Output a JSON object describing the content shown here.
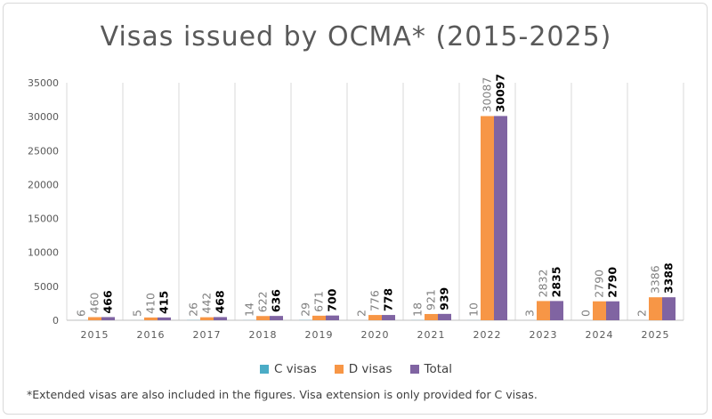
{
  "chart_data": {
    "type": "bar",
    "title": "Visas issued by OCMA* (2015-2025)",
    "categories": [
      "2015",
      "2016",
      "2017",
      "2018",
      "2019",
      "2020",
      "2021",
      "2022",
      "2023",
      "2024",
      "2025"
    ],
    "series": [
      {
        "name": "C visas",
        "color": "#4bacc6",
        "values": [
          6,
          5,
          26,
          14,
          29,
          2,
          18,
          10,
          3,
          0,
          2
        ]
      },
      {
        "name": "D visas",
        "color": "#f79646",
        "values": [
          460,
          410,
          442,
          622,
          671,
          776,
          921,
          30087,
          2832,
          2790,
          3386
        ]
      },
      {
        "name": "Total",
        "color": "#8064a2",
        "values": [
          466,
          415,
          468,
          636,
          700,
          778,
          939,
          30097,
          2835,
          2790,
          3388
        ]
      }
    ],
    "ylim": [
      0,
      35000
    ],
    "yticks": [
      0,
      5000,
      10000,
      15000,
      20000,
      25000,
      30000,
      35000
    ],
    "grid": "vertical",
    "legend_position": "bottom",
    "footnote": "*Extended visas are also included in the figures. Visa extension is only provided for C visas."
  }
}
